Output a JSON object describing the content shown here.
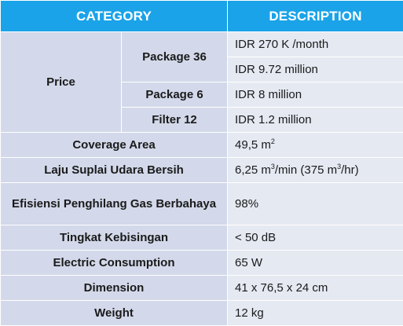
{
  "headers": {
    "category": "CATEGORY",
    "description": "DESCRIPTION"
  },
  "price": {
    "label": "Price",
    "package36": {
      "label": "Package 36",
      "monthly": "IDR 270 K /month",
      "total": "IDR 9.72 million"
    },
    "package6": {
      "label": "Package 6",
      "value": "IDR 8 million"
    },
    "filter12": {
      "label": "Filter 12",
      "value": "IDR 1.2 million"
    }
  },
  "coverage": {
    "label": "Coverage Area",
    "value": "49,5 m",
    "unit_exp": "2"
  },
  "cadr": {
    "label": "Laju Suplai Udara Bersih",
    "value_a": "6,25 m",
    "exp_a": "3",
    "value_b": "/min (375 m",
    "exp_b": "3",
    "value_c": "/hr)"
  },
  "gas_removal": {
    "label": "Efisiensi Penghilang Gas Berbahaya",
    "value": "98%"
  },
  "noise": {
    "label": "Tingkat Kebisingan",
    "value": "< 50 dB"
  },
  "power": {
    "label": "Electric Consumption",
    "value": "65 W"
  },
  "dimension": {
    "label": "Dimension",
    "value": "41 x 76,5 x 24 cm"
  },
  "weight": {
    "label": "Weight",
    "value": "12 kg"
  },
  "colors": {
    "header_bg": "#1aa3e8",
    "label_bg": "#d3d9ea",
    "value_bg": "#e5e9f2"
  }
}
